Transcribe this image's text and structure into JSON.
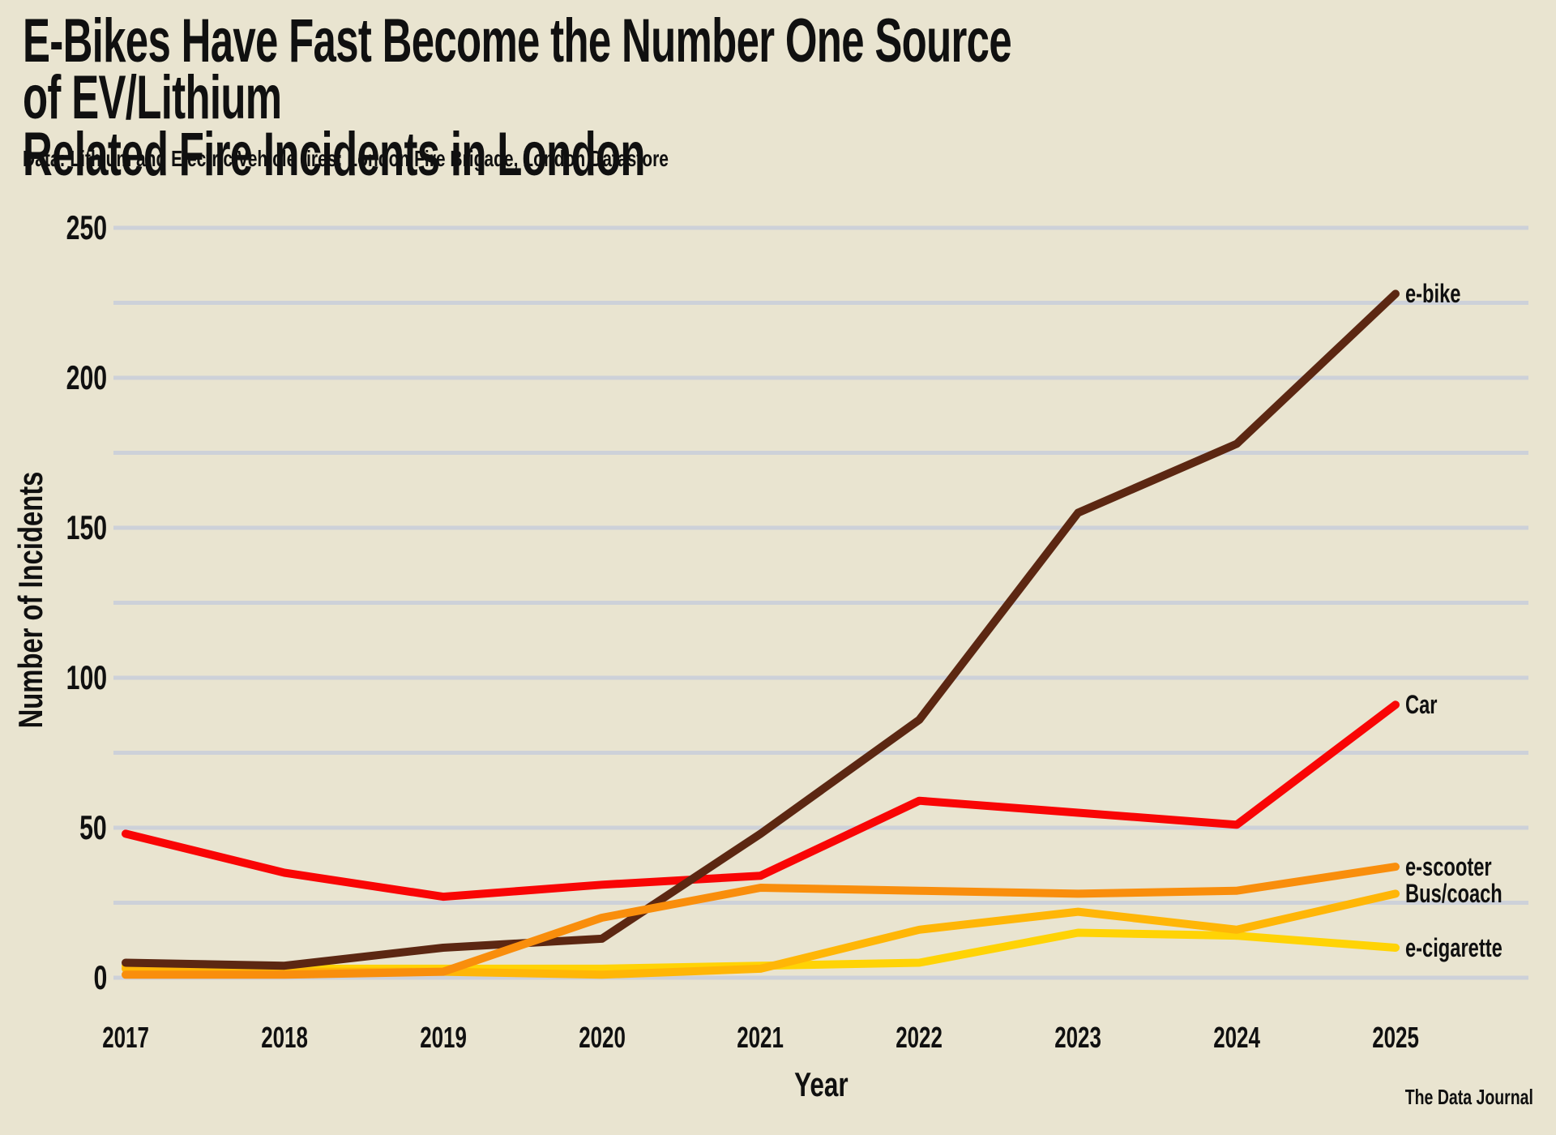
{
  "header": {
    "title": "E-Bikes Have Fast Become the Number One Source of EV/Lithium\nRelated Fire Incidents in London",
    "subtitle": "Data: Lithium and Electric Vehicle fires; London Fire Brigade, London Datastore",
    "watermark": "The Data Journal"
  },
  "colors": {
    "background": "#E9E4D0",
    "gridline": "#CDD1D9",
    "text": "#101010"
  },
  "chart_data": {
    "type": "line",
    "title": "E-Bikes Have Fast Become the Number One Source of EV/Lithium Related Fire Incidents in London",
    "xlabel": "Year",
    "ylabel": "Number of Incidents",
    "x": [
      2017,
      2018,
      2019,
      2020,
      2021,
      2022,
      2023,
      2024,
      2025
    ],
    "ylim": [
      0,
      250
    ],
    "ytick_labels": [
      0,
      50,
      100,
      150,
      200,
      250
    ],
    "grid_step": 25,
    "grid": true,
    "legend_position": "line-end-labels",
    "series": [
      {
        "name": "e-bike",
        "color": "#5C2712",
        "values": [
          5,
          4,
          10,
          13,
          48,
          86,
          155,
          178,
          228
        ]
      },
      {
        "name": "Car",
        "color": "#F90505",
        "values": [
          48,
          35,
          27,
          31,
          34,
          59,
          55,
          51,
          91
        ]
      },
      {
        "name": "e-scooter",
        "color": "#F98E0C",
        "values": [
          1,
          1,
          2,
          20,
          30,
          29,
          28,
          29,
          37
        ]
      },
      {
        "name": "Bus/coach",
        "color": "#FFB607",
        "values": [
          3,
          2,
          2,
          1,
          3,
          16,
          22,
          16,
          28
        ]
      },
      {
        "name": "e-cigarette",
        "color": "#FFD305",
        "values": [
          4,
          3,
          3,
          3,
          4,
          5,
          15,
          14,
          10
        ]
      }
    ],
    "draw_order": [
      "e-cigarette",
      "Bus/coach",
      "Car",
      "e-bike",
      "e-scooter"
    ]
  }
}
